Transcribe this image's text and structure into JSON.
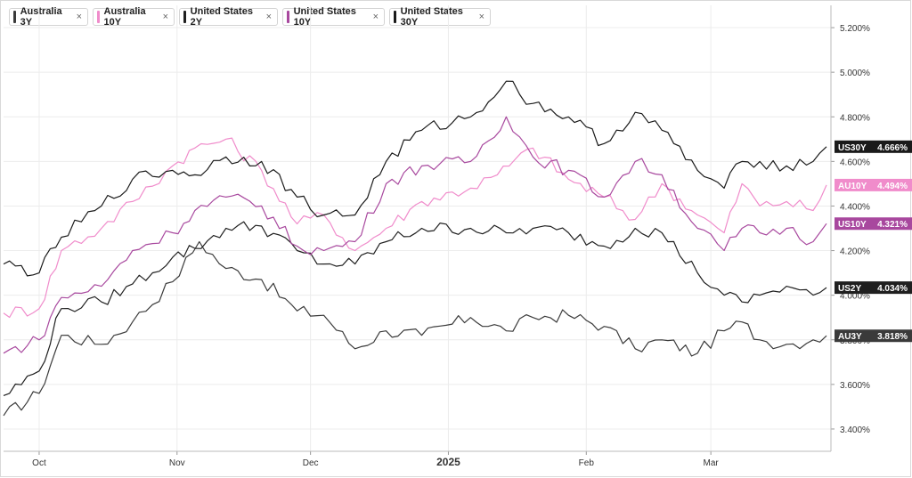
{
  "legend": [
    {
      "label": "Australia 3Y",
      "color": "#3a3a3a",
      "close": "×"
    },
    {
      "label": "Australia 10Y",
      "color": "#f08ccb",
      "close": "×"
    },
    {
      "label": "United States 2Y",
      "color": "#1f1f1f",
      "close": "×"
    },
    {
      "label": "United States 10Y",
      "color": "#a8489e",
      "close": "×"
    },
    {
      "label": "United States 30Y",
      "color": "#1a1a1a",
      "close": "×"
    }
  ],
  "chart_data": {
    "type": "line",
    "x_range": [
      "2024-09-23",
      "2025-03-28"
    ],
    "y_range": [
      3.3,
      5.3
    ],
    "ticks_y": [
      "5.200%",
      "5.000%",
      "4.800%",
      "4.600%",
      "4.400%",
      "4.200%",
      "4.000%",
      "3.800%",
      "3.600%",
      "3.400%"
    ],
    "ticks_y_values": [
      5.2,
      5.0,
      4.8,
      4.6,
      4.4,
      4.2,
      4.0,
      3.8,
      3.6,
      3.4
    ],
    "ticks_x": [
      {
        "date": "2024-10-01",
        "label": "Oct",
        "bold": false
      },
      {
        "date": "2024-11-01",
        "label": "Nov",
        "bold": false
      },
      {
        "date": "2024-12-01",
        "label": "Dec",
        "bold": false
      },
      {
        "date": "2025-01-01",
        "label": "2025",
        "bold": true
      },
      {
        "date": "2025-02-01",
        "label": "Feb",
        "bold": false
      },
      {
        "date": "2025-03-01",
        "label": "Mar",
        "bold": false
      }
    ],
    "grid": true,
    "legend_position": "top-left",
    "series": [
      {
        "name": "Australia 3Y",
        "tag": "AU3Y",
        "last": "3.818%",
        "last_value": 3.818,
        "color": "#3a3a3a",
        "data": [
          [
            "2024-09-23",
            3.46
          ],
          [
            "2024-10-01",
            3.56
          ],
          [
            "2024-10-06",
            3.82
          ],
          [
            "2024-10-15",
            3.78
          ],
          [
            "2024-10-22",
            3.88
          ],
          [
            "2024-10-31",
            4.06
          ],
          [
            "2024-11-06",
            4.24
          ],
          [
            "2024-11-12",
            4.12
          ],
          [
            "2024-11-20",
            4.07
          ],
          [
            "2024-11-28",
            3.93
          ],
          [
            "2024-12-04",
            3.91
          ],
          [
            "2024-12-11",
            3.76
          ],
          [
            "2024-12-18",
            3.84
          ],
          [
            "2024-12-26",
            3.82
          ],
          [
            "2025-01-06",
            3.9
          ],
          [
            "2025-01-14",
            3.84
          ],
          [
            "2025-01-20",
            3.9
          ],
          [
            "2025-01-28",
            3.91
          ],
          [
            "2025-02-05",
            3.86
          ],
          [
            "2025-02-12",
            3.76
          ],
          [
            "2025-02-18",
            3.8
          ],
          [
            "2025-02-26",
            3.74
          ],
          [
            "2025-03-04",
            3.84
          ],
          [
            "2025-03-08",
            3.88
          ],
          [
            "2025-03-12",
            3.8
          ],
          [
            "2025-03-18",
            3.78
          ],
          [
            "2025-03-24",
            3.8
          ],
          [
            "2025-03-27",
            3.818
          ]
        ]
      },
      {
        "name": "Australia 10Y",
        "tag": "AU10Y",
        "last": "4.494%",
        "last_value": 4.494,
        "color": "#f08ccb",
        "data": [
          [
            "2024-09-23",
            3.92
          ],
          [
            "2024-10-01",
            3.94
          ],
          [
            "2024-10-06",
            4.2
          ],
          [
            "2024-10-15",
            4.3
          ],
          [
            "2024-10-22",
            4.42
          ],
          [
            "2024-10-31",
            4.58
          ],
          [
            "2024-11-05",
            4.66
          ],
          [
            "2024-11-12",
            4.7
          ],
          [
            "2024-11-20",
            4.56
          ],
          [
            "2024-11-28",
            4.32
          ],
          [
            "2024-12-04",
            4.36
          ],
          [
            "2024-12-11",
            4.2
          ],
          [
            "2024-12-18",
            4.3
          ],
          [
            "2024-12-26",
            4.42
          ],
          [
            "2025-01-06",
            4.48
          ],
          [
            "2025-01-12",
            4.54
          ],
          [
            "2025-01-20",
            4.66
          ],
          [
            "2025-01-28",
            4.52
          ],
          [
            "2025-02-05",
            4.44
          ],
          [
            "2025-02-12",
            4.34
          ],
          [
            "2025-02-18",
            4.5
          ],
          [
            "2025-02-26",
            4.36
          ],
          [
            "2025-03-04",
            4.28
          ],
          [
            "2025-03-08",
            4.5
          ],
          [
            "2025-03-12",
            4.4
          ],
          [
            "2025-03-18",
            4.42
          ],
          [
            "2025-03-24",
            4.38
          ],
          [
            "2025-03-27",
            4.494
          ]
        ]
      },
      {
        "name": "United States 2Y",
        "tag": "US2Y",
        "last": "4.034%",
        "last_value": 4.034,
        "color": "#1f1f1f",
        "data": [
          [
            "2024-09-23",
            3.55
          ],
          [
            "2024-10-01",
            3.66
          ],
          [
            "2024-10-06",
            3.94
          ],
          [
            "2024-10-15",
            3.97
          ],
          [
            "2024-10-22",
            4.05
          ],
          [
            "2024-10-31",
            4.17
          ],
          [
            "2024-11-05",
            4.21
          ],
          [
            "2024-11-12",
            4.3
          ],
          [
            "2024-11-20",
            4.31
          ],
          [
            "2024-11-28",
            4.2
          ],
          [
            "2024-12-04",
            4.14
          ],
          [
            "2024-12-11",
            4.14
          ],
          [
            "2024-12-18",
            4.24
          ],
          [
            "2024-12-26",
            4.3
          ],
          [
            "2025-01-06",
            4.3
          ],
          [
            "2025-01-14",
            4.28
          ],
          [
            "2025-01-20",
            4.3
          ],
          [
            "2025-01-28",
            4.28
          ],
          [
            "2025-02-05",
            4.22
          ],
          [
            "2025-02-12",
            4.3
          ],
          [
            "2025-02-18",
            4.28
          ],
          [
            "2025-02-26",
            4.1
          ],
          [
            "2025-03-04",
            4.0
          ],
          [
            "2025-03-08",
            3.97
          ],
          [
            "2025-03-12",
            4.0
          ],
          [
            "2025-03-18",
            4.04
          ],
          [
            "2025-03-24",
            4.0
          ],
          [
            "2025-03-27",
            4.034
          ]
        ]
      },
      {
        "name": "United States 10Y",
        "tag": "US10Y",
        "last": "4.321%",
        "last_value": 4.321,
        "color": "#a8489e",
        "data": [
          [
            "2024-09-23",
            3.74
          ],
          [
            "2024-10-01",
            3.8
          ],
          [
            "2024-10-06",
            3.99
          ],
          [
            "2024-10-15",
            4.04
          ],
          [
            "2024-10-22",
            4.2
          ],
          [
            "2024-10-31",
            4.28
          ],
          [
            "2024-11-05",
            4.38
          ],
          [
            "2024-11-12",
            4.44
          ],
          [
            "2024-11-20",
            4.4
          ],
          [
            "2024-11-28",
            4.22
          ],
          [
            "2024-12-04",
            4.2
          ],
          [
            "2024-12-11",
            4.24
          ],
          [
            "2024-12-18",
            4.5
          ],
          [
            "2024-12-26",
            4.58
          ],
          [
            "2025-01-06",
            4.6
          ],
          [
            "2025-01-14",
            4.8
          ],
          [
            "2025-01-20",
            4.62
          ],
          [
            "2025-01-28",
            4.56
          ],
          [
            "2025-02-05",
            4.44
          ],
          [
            "2025-02-12",
            4.6
          ],
          [
            "2025-02-18",
            4.54
          ],
          [
            "2025-02-26",
            4.3
          ],
          [
            "2025-03-04",
            4.2
          ],
          [
            "2025-03-08",
            4.3
          ],
          [
            "2025-03-12",
            4.28
          ],
          [
            "2025-03-18",
            4.3
          ],
          [
            "2025-03-24",
            4.24
          ],
          [
            "2025-03-27",
            4.321
          ]
        ]
      },
      {
        "name": "United States 30Y",
        "tag": "US30Y",
        "last": "4.666%",
        "last_value": 4.666,
        "color": "#1a1a1a",
        "data": [
          [
            "2024-09-23",
            4.14
          ],
          [
            "2024-10-01",
            4.1
          ],
          [
            "2024-10-06",
            4.26
          ],
          [
            "2024-10-15",
            4.4
          ],
          [
            "2024-10-22",
            4.52
          ],
          [
            "2024-10-31",
            4.56
          ],
          [
            "2024-11-05",
            4.54
          ],
          [
            "2024-11-12",
            4.62
          ],
          [
            "2024-11-20",
            4.6
          ],
          [
            "2024-11-28",
            4.44
          ],
          [
            "2024-12-04",
            4.36
          ],
          [
            "2024-12-11",
            4.36
          ],
          [
            "2024-12-18",
            4.6
          ],
          [
            "2024-12-26",
            4.74
          ],
          [
            "2025-01-06",
            4.8
          ],
          [
            "2025-01-14",
            4.96
          ],
          [
            "2025-01-20",
            4.86
          ],
          [
            "2025-01-28",
            4.8
          ],
          [
            "2025-02-05",
            4.68
          ],
          [
            "2025-02-12",
            4.82
          ],
          [
            "2025-02-18",
            4.74
          ],
          [
            "2025-02-26",
            4.56
          ],
          [
            "2025-03-04",
            4.48
          ],
          [
            "2025-03-08",
            4.6
          ],
          [
            "2025-03-12",
            4.6
          ],
          [
            "2025-03-18",
            4.58
          ],
          [
            "2025-03-24",
            4.6
          ],
          [
            "2025-03-27",
            4.666
          ]
        ]
      }
    ]
  }
}
